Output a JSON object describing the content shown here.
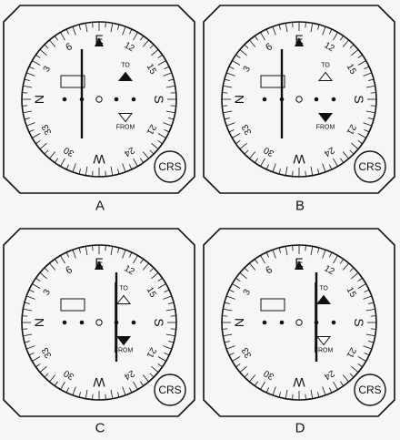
{
  "colors": {
    "background": "#f6f6f4",
    "stroke": "#111111",
    "hollow_triangle": "#ffffff"
  },
  "dial": {
    "cardinals": {
      "N": "N",
      "E": "E",
      "S": "S",
      "W": "W"
    },
    "numbers": {
      "3": "3",
      "6": "6",
      "12": "12",
      "15": "15",
      "21": "21",
      "24": "24",
      "30": "30",
      "33": "33"
    },
    "to_text": "TO",
    "from_text": "FROM",
    "crs_label": "CRS"
  },
  "instruments": [
    {
      "caption": "A",
      "needle": "left",
      "to_solid": true,
      "from_solid": false,
      "flag_column": "center"
    },
    {
      "caption": "B",
      "needle": "left",
      "to_solid": false,
      "from_solid": true,
      "flag_column": "center"
    },
    {
      "caption": "C",
      "needle": "center",
      "to_solid": false,
      "from_solid": true,
      "flag_column": "right"
    },
    {
      "caption": "D",
      "needle": "center",
      "to_solid": true,
      "from_solid": false,
      "flag_column": "right"
    }
  ]
}
